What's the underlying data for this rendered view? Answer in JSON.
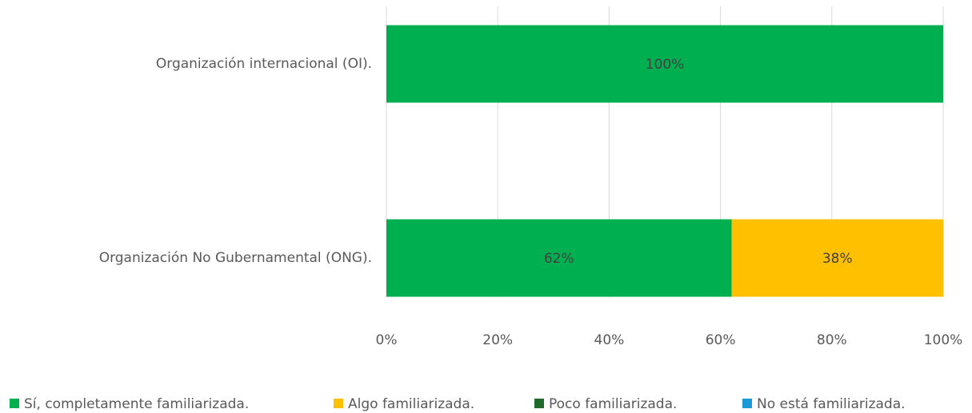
{
  "chart_data": {
    "type": "stacked_bar_horizontal",
    "categories": [
      "Organización internacional (OI).",
      "Organización No Gubernamental (ONG)."
    ],
    "series": [
      {
        "name": "Sí, completamente familiarizada.",
        "color": "#00b050",
        "values": [
          100,
          62
        ],
        "value_labels": [
          "100%",
          "62%"
        ]
      },
      {
        "name": "Algo familiarizada.",
        "color": "#ffc000",
        "values": [
          0,
          38
        ],
        "value_labels": [
          null,
          "38%"
        ]
      },
      {
        "name": "Poco familiarizada.",
        "color": "#1e6b2a",
        "values": [
          0,
          0
        ],
        "value_labels": [
          null,
          null
        ]
      },
      {
        "name": "No está familiarizada.",
        "color": "#1a9bd7",
        "values": [
          0,
          0
        ],
        "value_labels": [
          null,
          null
        ]
      }
    ],
    "xlim": [
      0,
      100
    ],
    "xticks": [
      {
        "value": 0,
        "label": "0%"
      },
      {
        "value": 20,
        "label": "20%"
      },
      {
        "value": 40,
        "label": "40%"
      },
      {
        "value": 60,
        "label": "60%"
      },
      {
        "value": 80,
        "label": "80%"
      },
      {
        "value": 100,
        "label": "100%"
      }
    ],
    "grid": true,
    "legend": "bottom"
  }
}
